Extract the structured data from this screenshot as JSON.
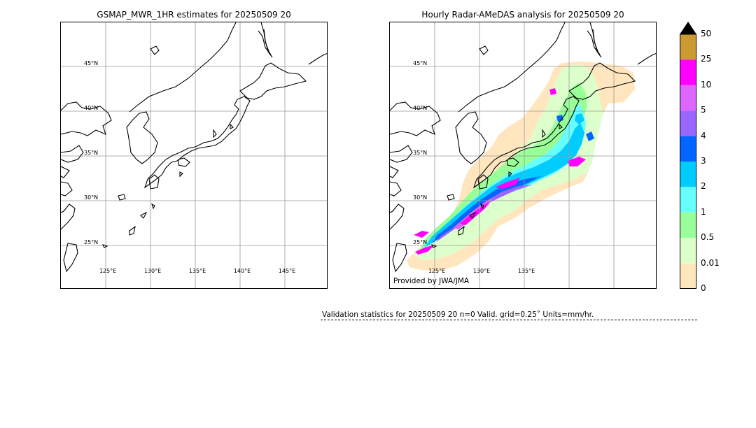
{
  "left_panel": {
    "title": "GSMAP_MWR_1HR estimates for 20250509 20"
  },
  "right_panel": {
    "title": "Hourly Radar-AMeDAS analysis for 20250509 20",
    "credit": "Provided by JWA/JMA"
  },
  "lat_labels": [
    "45°N",
    "40°N",
    "35°N",
    "30°N",
    "25°N"
  ],
  "lon_labels_left": [
    "125°E",
    "130°E",
    "135°E",
    "140°E",
    "145°E"
  ],
  "lon_labels_right": [
    "125°E",
    "130°E",
    "135°E"
  ],
  "colorbar": {
    "labels": [
      "50",
      "25",
      "10",
      "5",
      "4",
      "3",
      "2",
      "1",
      "0.5",
      "0.01",
      "0"
    ],
    "colors": [
      "#cc9933",
      "#ff00ff",
      "#dd66ff",
      "#9966ff",
      "#0066ff",
      "#00ccff",
      "#66ffff",
      "#99ff99",
      "#ddffcc",
      "#ffe6bf"
    ],
    "over_color": "#000000"
  },
  "validation": {
    "text": "Validation statistics for 20250509 20  n=0 Valid. grid=0.25˚ Units=mm/hr."
  }
}
